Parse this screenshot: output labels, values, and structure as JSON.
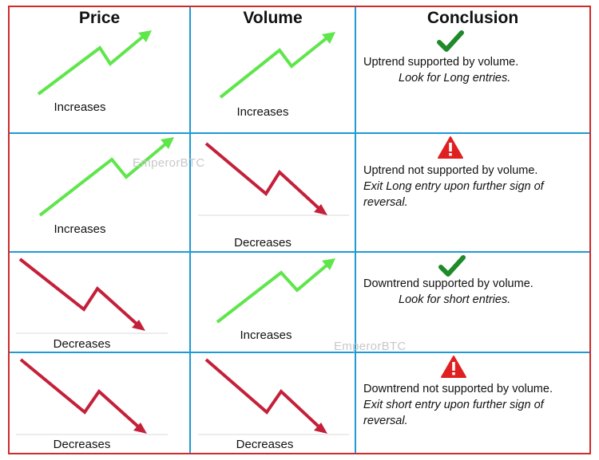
{
  "headers": {
    "price": "Price",
    "volume": "Volume",
    "conclusion": "Conclusion"
  },
  "rows": [
    {
      "price": "Increases",
      "volume": "Increases",
      "icon": "check-icon",
      "line1": "Uptrend supported by volume.",
      "line2": "Look for Long entries."
    },
    {
      "price": "Increases",
      "volume": "Decreases",
      "icon": "warning-icon",
      "line1": "Uptrend not supported by volume.",
      "line2": "Exit Long entry upon further sign of reversal."
    },
    {
      "price": "Decreases",
      "volume": "Increases",
      "icon": "check-icon",
      "line1": "Downtrend supported by volume.",
      "line2": "Look for short entries."
    },
    {
      "price": "Decreases",
      "volume": "Decreases",
      "icon": "warning-icon",
      "line1": "Downtrend not supported by volume.",
      "line2": "Exit short entry upon further sign of reversal."
    }
  ],
  "watermark": "EmperorBTC",
  "colors": {
    "up": "#5ee64a",
    "down": "#c4203a",
    "border": "#d12a2a",
    "grid": "#1e9ad6",
    "check": "#1f8a2a",
    "warning": "#e02020"
  }
}
